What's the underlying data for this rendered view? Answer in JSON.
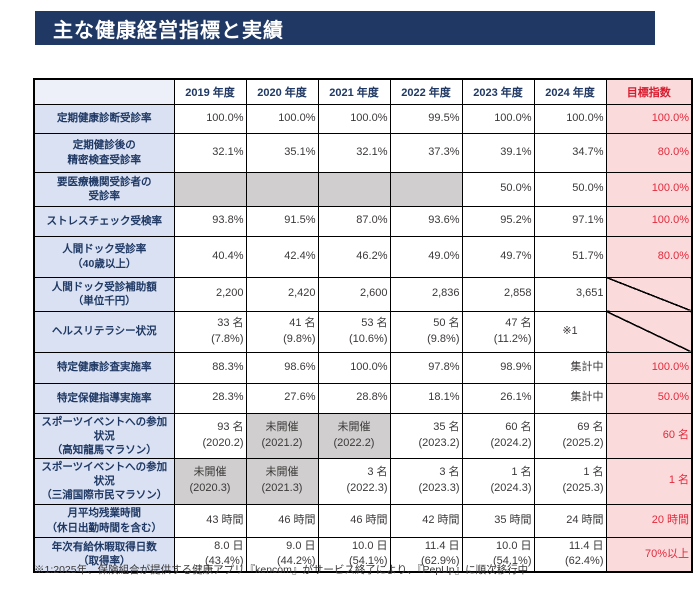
{
  "page_title": "主な健康経営指標と実績",
  "footnote": "※1:2025年、保険組合が提供する健康アプリ『kencom』がサービス終了により、『PepUp』に順次移行中",
  "colors": {
    "title_bar_bg": "#1F3864",
    "label_cell_bg": "#D9E1F2",
    "target_col_bg": "#FBDADB",
    "target_text_red": "#E22A3C",
    "disabled_cell_gray": "#D0CECE",
    "border": "#000000"
  },
  "table": {
    "columns": [
      "",
      "2019 年度",
      "2020 年度",
      "2021 年度",
      "2022 年度",
      "2023 年度",
      "2024 年度",
      "目標指数"
    ],
    "rows": [
      {
        "label": [
          "定期健康診断受診率"
        ],
        "cells": [
          {
            "lines": [
              "100.0%"
            ]
          },
          {
            "lines": [
              "100.0%"
            ]
          },
          {
            "lines": [
              "100.0%"
            ]
          },
          {
            "lines": [
              "99.5%"
            ]
          },
          {
            "lines": [
              "100.0%"
            ]
          },
          {
            "lines": [
              "100.0%"
            ]
          }
        ],
        "target": {
          "lines": [
            "100.0%"
          ]
        }
      },
      {
        "label": [
          "定期健診後の",
          "精密検査受診率"
        ],
        "cells": [
          {
            "lines": [
              "32.1%"
            ]
          },
          {
            "lines": [
              "35.1%"
            ]
          },
          {
            "lines": [
              "32.1%"
            ]
          },
          {
            "lines": [
              "37.3%"
            ]
          },
          {
            "lines": [
              "39.1%"
            ]
          },
          {
            "lines": [
              "34.7%"
            ]
          }
        ],
        "target": {
          "lines": [
            "80.0%"
          ]
        }
      },
      {
        "label": [
          "要医療機関受診者の",
          "受診率"
        ],
        "cells": [
          {
            "lines": [],
            "bg": "gray"
          },
          {
            "lines": [],
            "bg": "gray"
          },
          {
            "lines": [],
            "bg": "gray"
          },
          {
            "lines": [],
            "bg": "gray"
          },
          {
            "lines": [
              "50.0%"
            ]
          },
          {
            "lines": [
              "50.0%"
            ]
          }
        ],
        "target": {
          "lines": [
            "100.0%"
          ]
        }
      },
      {
        "label": [
          "ストレスチェック受検率"
        ],
        "cells": [
          {
            "lines": [
              "93.8%"
            ]
          },
          {
            "lines": [
              "91.5%"
            ]
          },
          {
            "lines": [
              "87.0%"
            ]
          },
          {
            "lines": [
              "93.6%"
            ]
          },
          {
            "lines": [
              "95.2%"
            ]
          },
          {
            "lines": [
              "97.1%"
            ]
          }
        ],
        "target": {
          "lines": [
            "100.0%"
          ]
        }
      },
      {
        "label": [
          "人間ドック受診率",
          "（40歳以上）"
        ],
        "cells": [
          {
            "lines": [
              "40.4%"
            ]
          },
          {
            "lines": [
              "42.4%"
            ]
          },
          {
            "lines": [
              "46.2%"
            ]
          },
          {
            "lines": [
              "49.0%"
            ]
          },
          {
            "lines": [
              "49.7%"
            ]
          },
          {
            "lines": [
              "51.7%"
            ]
          }
        ],
        "target": {
          "lines": [
            "80.0%"
          ]
        }
      },
      {
        "label": [
          "人間ドック受診補助額",
          "（単位千円）"
        ],
        "cells": [
          {
            "lines": [
              "2,200"
            ]
          },
          {
            "lines": [
              "2,420"
            ]
          },
          {
            "lines": [
              "2,600"
            ]
          },
          {
            "lines": [
              "2,836"
            ]
          },
          {
            "lines": [
              "2,858"
            ]
          },
          {
            "lines": [
              "3,651"
            ]
          }
        ],
        "target": {
          "diagonal": true,
          "lines": []
        }
      },
      {
        "label": [
          "ヘルスリテラシー状況"
        ],
        "cells": [
          {
            "lines": [
              "33 名",
              "(7.8%)"
            ]
          },
          {
            "lines": [
              "41 名",
              "(9.8%)"
            ]
          },
          {
            "lines": [
              "53 名",
              "(10.6%)"
            ]
          },
          {
            "lines": [
              "50 名",
              "(9.8%)"
            ]
          },
          {
            "lines": [
              "47 名",
              "(11.2%)"
            ]
          },
          {
            "lines": [
              "※1"
            ],
            "align": "center"
          }
        ],
        "target": {
          "diagonal": true,
          "lines": []
        }
      },
      {
        "label": [
          "特定健康診査実施率"
        ],
        "cells": [
          {
            "lines": [
              "88.3%"
            ]
          },
          {
            "lines": [
              "98.6%"
            ]
          },
          {
            "lines": [
              "100.0%"
            ]
          },
          {
            "lines": [
              "97.8%"
            ]
          },
          {
            "lines": [
              "98.9%"
            ]
          },
          {
            "lines": [
              "集計中"
            ]
          }
        ],
        "target": {
          "lines": [
            "100.0%"
          ]
        }
      },
      {
        "label": [
          "特定保健指導実施率"
        ],
        "cells": [
          {
            "lines": [
              "28.3%"
            ]
          },
          {
            "lines": [
              "27.6%"
            ]
          },
          {
            "lines": [
              "28.8%"
            ]
          },
          {
            "lines": [
              "18.1%"
            ]
          },
          {
            "lines": [
              "26.1%"
            ]
          },
          {
            "lines": [
              "集計中"
            ]
          }
        ],
        "target": {
          "lines": [
            "50.0%"
          ]
        }
      },
      {
        "label": [
          "スポーツイベントへの参加状況",
          "（高知龍馬マラソン）"
        ],
        "cells": [
          {
            "lines": [
              "93 名",
              "(2020.2)"
            ]
          },
          {
            "lines": [
              "未開催",
              "(2021.2)"
            ],
            "bg": "gray",
            "align": "center"
          },
          {
            "lines": [
              "未開催",
              "(2022.2)"
            ],
            "bg": "gray",
            "align": "center"
          },
          {
            "lines": [
              "35 名",
              "(2023.2)"
            ]
          },
          {
            "lines": [
              "60 名",
              "(2024.2)"
            ]
          },
          {
            "lines": [
              "69 名",
              "(2025.2)"
            ]
          }
        ],
        "target": {
          "lines": [
            "60 名"
          ]
        }
      },
      {
        "label": [
          "スポーツイベントへの参加状況",
          "（三浦国際市民マラソン）"
        ],
        "cells": [
          {
            "lines": [
              "未開催",
              "(2020.3)"
            ],
            "bg": "gray",
            "align": "center"
          },
          {
            "lines": [
              "未開催",
              "(2021.3)"
            ],
            "bg": "gray",
            "align": "center"
          },
          {
            "lines": [
              "3 名",
              "(2022.3)"
            ]
          },
          {
            "lines": [
              "3 名",
              "(2023.3)"
            ]
          },
          {
            "lines": [
              "1 名",
              "(2024.3)"
            ]
          },
          {
            "lines": [
              "1 名",
              "(2025.3)"
            ]
          }
        ],
        "target": {
          "lines": [
            "1 名"
          ]
        }
      },
      {
        "label": [
          "月平均残業時間",
          "（休日出勤時間を含む）"
        ],
        "cells": [
          {
            "lines": [
              "43 時間"
            ]
          },
          {
            "lines": [
              "46 時間"
            ]
          },
          {
            "lines": [
              "46 時間"
            ]
          },
          {
            "lines": [
              "42 時間"
            ]
          },
          {
            "lines": [
              "35 時間"
            ]
          },
          {
            "lines": [
              "24 時間"
            ]
          }
        ],
        "target": {
          "lines": [
            "20 時間"
          ]
        }
      },
      {
        "label": [
          "年次有給休暇取得日数",
          "（取得率）"
        ],
        "cells": [
          {
            "lines": [
              "8.0 日",
              "(43.4%)"
            ]
          },
          {
            "lines": [
              "9.0 日",
              "(44.2%)"
            ]
          },
          {
            "lines": [
              "10.0 日",
              "(54.1%)"
            ]
          },
          {
            "lines": [
              "11.4 日",
              "(62.9%)"
            ]
          },
          {
            "lines": [
              "10.0 日",
              "(54.1%)"
            ]
          },
          {
            "lines": [
              "11.4 日",
              "(62.4%)"
            ]
          }
        ],
        "target": {
          "lines": [
            "70%以上"
          ]
        }
      }
    ]
  }
}
